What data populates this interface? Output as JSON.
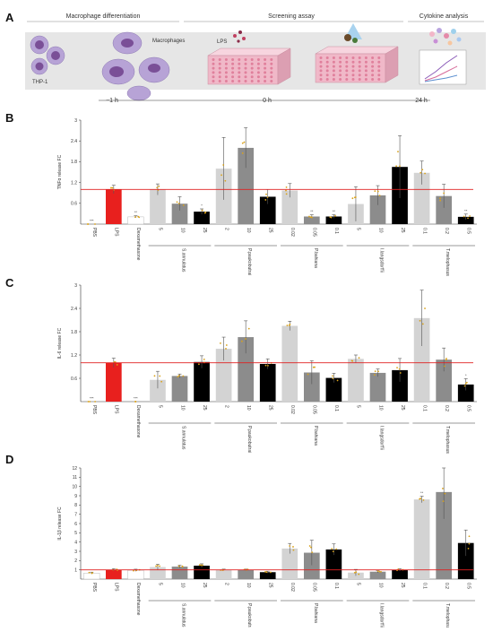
{
  "figure": {
    "panel_letters": [
      "A",
      "B",
      "C",
      "D"
    ]
  },
  "schematic": {
    "stages": [
      "Macrophage differentiation",
      "Screening assay",
      "Cytokine analysis"
    ],
    "labels": {
      "thp1": "THP-1",
      "macrophages": "Macrophages",
      "lps": "LPS"
    },
    "timeline": [
      "−1 h",
      "0 h",
      "24 h"
    ],
    "colors": {
      "band": "#e6e6e6",
      "cell": "#b7a3d6",
      "nucleus": "#7a4f97",
      "plate": "#f0b8c8",
      "well": "#e0809c"
    }
  },
  "chart_data": [
    {
      "type": "bar",
      "panel": "B",
      "ylabel": "TNFα release FC",
      "ylim": [
        0,
        3.0
      ],
      "yticks": [
        0.6,
        1.2,
        1.8,
        2.4,
        3.0
      ],
      "reference_line": 1.0,
      "categories": [
        "PBS",
        "LPS",
        "Dexamethasone",
        "5",
        "10",
        "25",
        "2",
        "10",
        "25",
        "0.02",
        "0.05",
        "0.1",
        "5",
        "10",
        "25",
        "0.1",
        "0.2",
        "0.5"
      ],
      "values": [
        0.0,
        1.0,
        0.21,
        1.0,
        0.59,
        0.36,
        1.6,
        2.2,
        0.79,
        0.97,
        0.22,
        0.22,
        0.58,
        0.83,
        1.65,
        1.48,
        0.81,
        0.21
      ],
      "errors": [
        0.0,
        0.12,
        0.03,
        0.16,
        0.2,
        0.08,
        0.9,
        0.58,
        0.21,
        0.2,
        0.05,
        0.05,
        0.5,
        0.28,
        0.9,
        0.34,
        0.34,
        0.08
      ],
      "significance": [
        "***",
        "",
        "**",
        "",
        "",
        "*",
        "",
        "",
        "",
        "",
        "**",
        "**",
        "",
        "",
        "",
        "",
        "",
        "**"
      ],
      "groups": [
        {
          "label": "S.annulatus",
          "start": 3,
          "end": 5
        },
        {
          "label": "P.paukobutrai",
          "start": 6,
          "end": 8
        },
        {
          "label": "P.bahiana",
          "start": 9,
          "end": 11
        },
        {
          "label": "I.langsdorffii",
          "start": 12,
          "end": 14
        },
        {
          "label": "T.melophasus",
          "start": 15,
          "end": 17
        }
      ]
    },
    {
      "type": "bar",
      "panel": "C",
      "ylabel": "IL-6 release FC",
      "ylim": [
        0,
        3.0
      ],
      "yticks": [
        0.6,
        1.2,
        1.8,
        2.4,
        3.0
      ],
      "reference_line": 1.0,
      "categories": [
        "PBS",
        "LPS",
        "Dexamethasone",
        "5",
        "10",
        "25",
        "2",
        "10",
        "25",
        "0.02",
        "0.05",
        "0.1",
        "5",
        "10",
        "25",
        "0.1",
        "0.2",
        "0.5"
      ],
      "values": [
        0.0,
        1.0,
        0.0,
        0.56,
        0.66,
        1.02,
        1.36,
        1.66,
        0.97,
        1.95,
        0.75,
        0.61,
        1.1,
        0.74,
        0.81,
        2.15,
        1.08,
        0.44
      ],
      "errors": [
        0.0,
        0.12,
        0.0,
        0.22,
        0.05,
        0.16,
        0.3,
        0.42,
        0.13,
        0.12,
        0.3,
        0.12,
        0.1,
        0.1,
        0.3,
        0.72,
        0.3,
        0.15
      ],
      "significance": [
        "***",
        "",
        "***",
        "",
        "",
        "",
        "",
        "",
        "",
        "",
        "",
        "",
        "",
        "",
        "",
        "",
        "",
        "*"
      ],
      "groups": [
        {
          "label": "S.annulatus",
          "start": 3,
          "end": 5
        },
        {
          "label": "P.paukobutrai",
          "start": 6,
          "end": 8
        },
        {
          "label": "P.bahiana",
          "start": 9,
          "end": 11
        },
        {
          "label": "I.langsdorffii",
          "start": 12,
          "end": 14
        },
        {
          "label": "T.melophasus",
          "start": 15,
          "end": 17
        }
      ]
    },
    {
      "type": "bar",
      "panel": "D",
      "ylabel": "IL-1β release FC",
      "ylim": [
        0,
        12
      ],
      "yticks": [
        1,
        2,
        3,
        4,
        5,
        6,
        7,
        8,
        9,
        10,
        11,
        12
      ],
      "reference_line": 1.0,
      "categories": [
        "PBS",
        "LPS",
        "Dexamethasone",
        "5",
        "10",
        "25",
        "2",
        "10",
        "25",
        "0.02",
        "0.05",
        "0.1",
        "5",
        "10",
        "25",
        "0.1",
        "0.2",
        "0.5"
      ],
      "values": [
        0.65,
        1.0,
        0.95,
        1.3,
        1.35,
        1.45,
        1.0,
        1.0,
        0.75,
        3.3,
        2.85,
        3.2,
        0.7,
        0.8,
        1.0,
        8.6,
        9.4,
        3.9
      ],
      "errors": [
        0.1,
        0.12,
        0.12,
        0.3,
        0.15,
        0.2,
        0.08,
        0.08,
        0.1,
        0.55,
        1.35,
        0.6,
        0.35,
        0.12,
        0.12,
        0.35,
        2.9,
        1.4
      ],
      "significance": [
        "",
        "",
        "",
        "",
        "",
        "",
        "",
        "",
        "",
        "",
        "",
        "",
        "",
        "",
        "",
        "**",
        "",
        ""
      ],
      "groups": [
        {
          "label": "S.annulatus",
          "start": 3,
          "end": 5
        },
        {
          "label": "P.paukobutrai",
          "start": 6,
          "end": 8
        },
        {
          "label": "P.bahiana",
          "start": 9,
          "end": 11
        },
        {
          "label": "I.langsdorffii",
          "start": 12,
          "end": 14
        },
        {
          "label": "T.melophasus",
          "start": 15,
          "end": 17
        }
      ]
    }
  ],
  "colors": {
    "pbs": "#ffffff",
    "lps": "#e8201e",
    "dexamethasone": "#ffffff",
    "low_dose": "#d3d3d3",
    "mid_dose": "#8c8c8c",
    "high_dose": "#000000",
    "reference_line": "#e02020",
    "points": "#d9a21b"
  }
}
